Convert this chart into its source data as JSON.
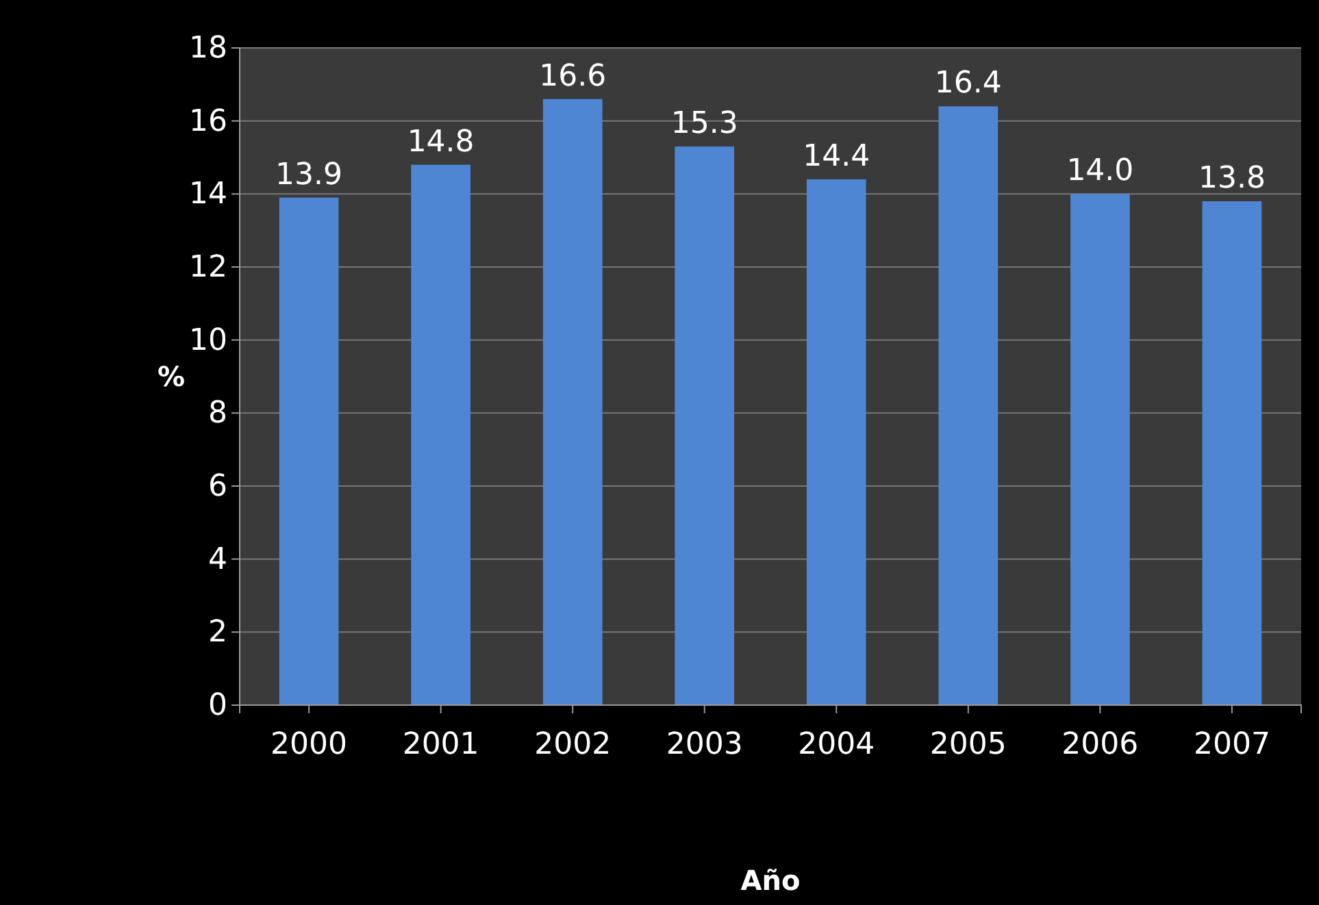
{
  "chart_data": {
    "type": "bar",
    "xlabel": "Año",
    "ylabel": "%",
    "categories": [
      "2000",
      "2001",
      "2002",
      "2003",
      "2004",
      "2005",
      "2006",
      "2007"
    ],
    "values": [
      13.9,
      14.8,
      16.6,
      15.3,
      14.4,
      16.4,
      14.0,
      13.8
    ],
    "color": "#4f86d4",
    "ylim": [
      0,
      18
    ],
    "yticks": [
      0,
      2,
      4,
      6,
      8,
      10,
      12,
      14,
      16,
      18
    ],
    "value_labels": [
      "13.9",
      "14.8",
      "16.6",
      "15.3",
      "14.4",
      "16.4",
      "14.0",
      "13.8"
    ],
    "grid": "y"
  }
}
